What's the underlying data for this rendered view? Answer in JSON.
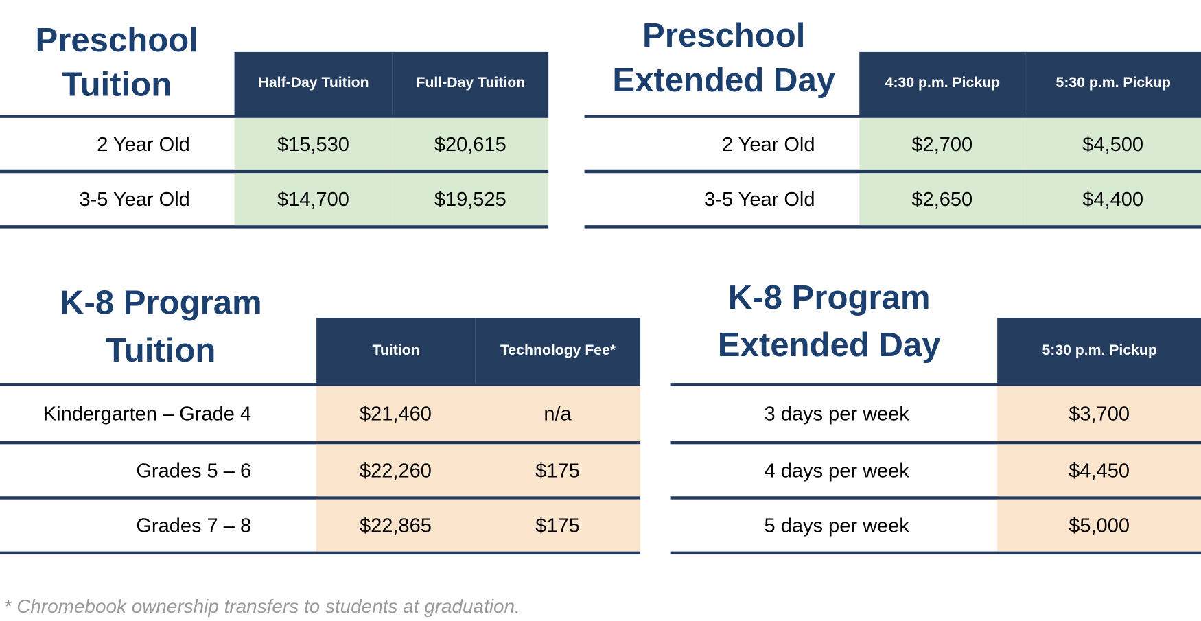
{
  "preschool_tuition": {
    "title": [
      "Preschool",
      "Tuition"
    ],
    "headers": [
      "Half-Day Tuition",
      "Full-Day Tuition"
    ],
    "rows": [
      {
        "label": "2 Year Old",
        "values": [
          "$15,530",
          "$20,615"
        ]
      },
      {
        "label": "3-5 Year Old",
        "values": [
          "$14,700",
          "$19,525"
        ]
      }
    ]
  },
  "preschool_extended": {
    "title": [
      "Preschool",
      "Extended Day"
    ],
    "headers": [
      "4:30 p.m. Pickup",
      "5:30 p.m. Pickup"
    ],
    "rows": [
      {
        "label": "2 Year Old",
        "values": [
          "$2,700",
          "$4,500"
        ]
      },
      {
        "label": "3-5 Year Old",
        "values": [
          "$2,650",
          "$4,400"
        ]
      }
    ]
  },
  "k8_tuition": {
    "title": [
      "K-8 Program",
      "Tuition"
    ],
    "headers": [
      "Tuition",
      "Technology Fee*"
    ],
    "rows": [
      {
        "label": "Kindergarten – Grade 4",
        "values": [
          "$21,460",
          "n/a"
        ]
      },
      {
        "label": "Grades 5 – 6",
        "values": [
          "$22,260",
          "$175"
        ]
      },
      {
        "label": "Grades 7 – 8",
        "values": [
          "$22,865",
          "$175"
        ]
      }
    ]
  },
  "k8_extended": {
    "title": [
      "K-8 Program",
      "Extended Day"
    ],
    "headers": [
      "5:30 p.m. Pickup"
    ],
    "rows": [
      {
        "label": "3 days per week",
        "values": [
          "$3,700"
        ]
      },
      {
        "label": "4 days per week",
        "values": [
          "$4,450"
        ]
      },
      {
        "label": "5 days per week",
        "values": [
          "$5,000"
        ]
      }
    ]
  },
  "footnote": "* Chromebook ownership transfers to students at graduation.",
  "colors": {
    "navy": "#253e60",
    "title": "#1b3f6e",
    "green": "#d9ead3",
    "peach": "#fce5cd"
  }
}
